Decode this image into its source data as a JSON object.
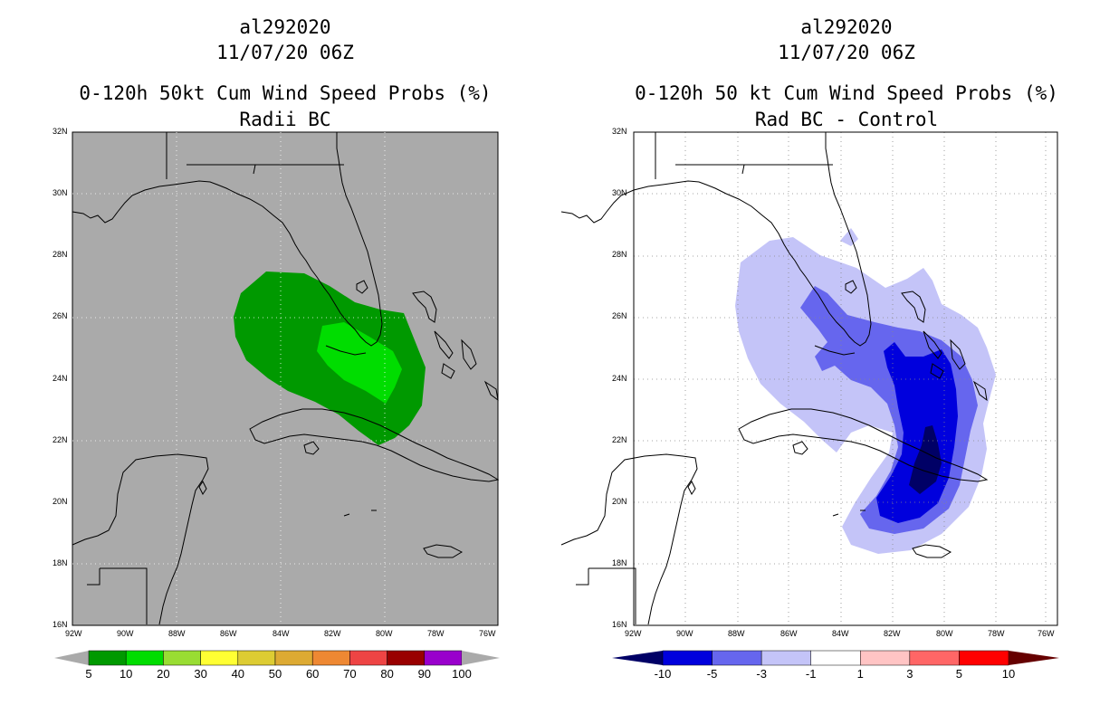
{
  "left_panel": {
    "title_line1": "al292020",
    "title_line2": "11/07/20 06Z",
    "title_line3": "0-120h 50kt Cum Wind Speed Probs (%)",
    "title_line4": "Radii BC",
    "colorbar_labels": [
      "5",
      "10",
      "20",
      "30",
      "40",
      "50",
      "60",
      "70",
      "80",
      "90",
      "100"
    ],
    "colorbar_colors": [
      "#009900",
      "#00dd00",
      "#99dd33",
      "#ffff33",
      "#ddcc33",
      "#ddaa33",
      "#ee8833",
      "#ee4444",
      "#990000",
      "#9900cc"
    ]
  },
  "right_panel": {
    "title_line1": "al292020",
    "title_line2": "11/07/20 06Z",
    "title_line3": "0-120h 50 kt Cum Wind Speed Probs (%)",
    "title_line4": "Rad BC - Control",
    "colorbar_labels": [
      "-10",
      "-5",
      "-3",
      "-1",
      "1",
      "3",
      "5",
      "10"
    ],
    "colorbar_colors": [
      "#0000dd",
      "#6666ee",
      "#c4c4f8",
      "#ffffff",
      "#ffc4c4",
      "#ff6666",
      "#ff0000"
    ]
  },
  "axes": {
    "lat_labels": [
      "32N",
      "30N",
      "28N",
      "26N",
      "24N",
      "22N",
      "20N",
      "18N",
      "16N"
    ],
    "lon_labels": [
      "92W",
      "90W",
      "88W",
      "86W",
      "84W",
      "82W",
      "80W",
      "78W",
      "76W"
    ]
  },
  "colors": {
    "land_sea_bg": "#aaaaaa",
    "prob_5": "#009900",
    "prob_10": "#00dd00",
    "diff_le_m1": "#c4c4f8",
    "diff_le_m3": "#6666ee",
    "diff_le_m5": "#0000dd",
    "diff_le_m10": "#000066"
  }
}
